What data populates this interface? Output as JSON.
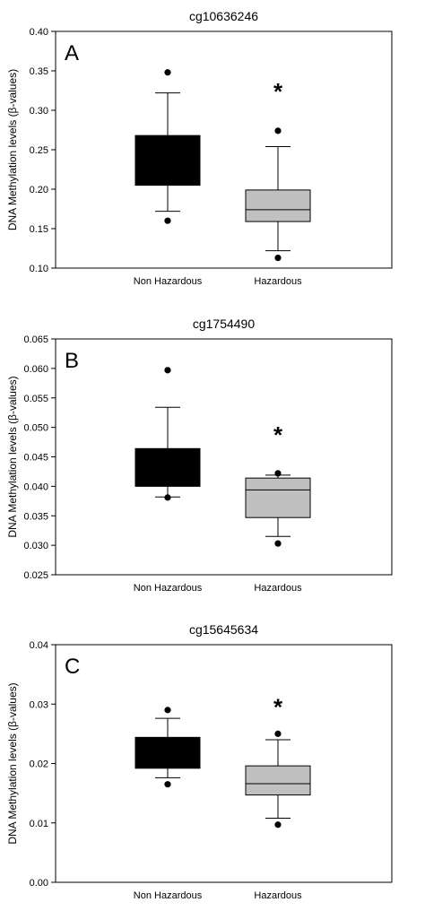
{
  "chart_data": [
    {
      "type": "box",
      "panel_letter": "A",
      "title": "cg10636246",
      "ylabel": "DNA Methylation levels (β-values)",
      "ylim": [
        0.1,
        0.4
      ],
      "yticks": [
        0.1,
        0.15,
        0.2,
        0.25,
        0.3,
        0.35,
        0.4
      ],
      "ytick_labels": [
        "0.10",
        "0.15",
        "0.20",
        "0.25",
        "0.30",
        "0.35",
        "0.40"
      ],
      "categories": [
        "Non Hazardous",
        "Hazardous"
      ],
      "boxes": [
        {
          "q1": 0.205,
          "median": 0.2645,
          "q3": 0.268,
          "whisker_low": 0.172,
          "whisker_high": 0.322,
          "outliers": [
            0.16,
            0.348
          ],
          "color": "#000000"
        },
        {
          "q1": 0.159,
          "median": 0.174,
          "q3": 0.199,
          "whisker_low": 0.122,
          "whisker_high": 0.254,
          "outliers": [
            0.113,
            0.274
          ],
          "color": "#c0c0c0"
        }
      ],
      "significance_marker": "*",
      "significance_value": 0.327
    },
    {
      "type": "box",
      "panel_letter": "B",
      "title": "cg1754490",
      "ylabel": "DNA Methylation levels (β-values)",
      "ylim": [
        0.025,
        0.065
      ],
      "yticks": [
        0.025,
        0.03,
        0.035,
        0.04,
        0.045,
        0.05,
        0.055,
        0.06,
        0.065
      ],
      "ytick_labels": [
        "0.025",
        "0.030",
        "0.035",
        "0.040",
        "0.045",
        "0.050",
        "0.055",
        "0.060",
        "0.065"
      ],
      "categories": [
        "Non Hazardous",
        "Hazardous"
      ],
      "boxes": [
        {
          "q1": 0.04,
          "median": 0.0462,
          "q3": 0.0464,
          "whisker_low": 0.0382,
          "whisker_high": 0.0534,
          "outliers": [
            0.0381,
            0.0597
          ],
          "color": "#000000"
        },
        {
          "q1": 0.0347,
          "median": 0.0394,
          "q3": 0.0414,
          "whisker_low": 0.0315,
          "whisker_high": 0.0419,
          "outliers": [
            0.0303,
            0.0422
          ],
          "color": "#c0c0c0"
        }
      ],
      "significance_marker": "*",
      "significance_value": 0.0492
    },
    {
      "type": "box",
      "panel_letter": "C",
      "title": "cg15645634",
      "ylabel": "DNA Methylation levels (β-values)",
      "ylim": [
        0.0,
        0.04
      ],
      "yticks": [
        0.0,
        0.01,
        0.02,
        0.03,
        0.04
      ],
      "ytick_labels": [
        "0.00",
        "0.01",
        "0.02",
        "0.03",
        "0.04"
      ],
      "categories": [
        "Non Hazardous",
        "Hazardous"
      ],
      "boxes": [
        {
          "q1": 0.0192,
          "median": 0.0238,
          "q3": 0.0244,
          "whisker_low": 0.0176,
          "whisker_high": 0.0276,
          "outliers": [
            0.0165,
            0.029
          ],
          "color": "#000000"
        },
        {
          "q1": 0.0147,
          "median": 0.0166,
          "q3": 0.0196,
          "whisker_low": 0.0108,
          "whisker_high": 0.024,
          "outliers": [
            0.0097,
            0.025
          ],
          "color": "#c0c0c0"
        }
      ],
      "significance_marker": "*",
      "significance_value": 0.03
    }
  ]
}
